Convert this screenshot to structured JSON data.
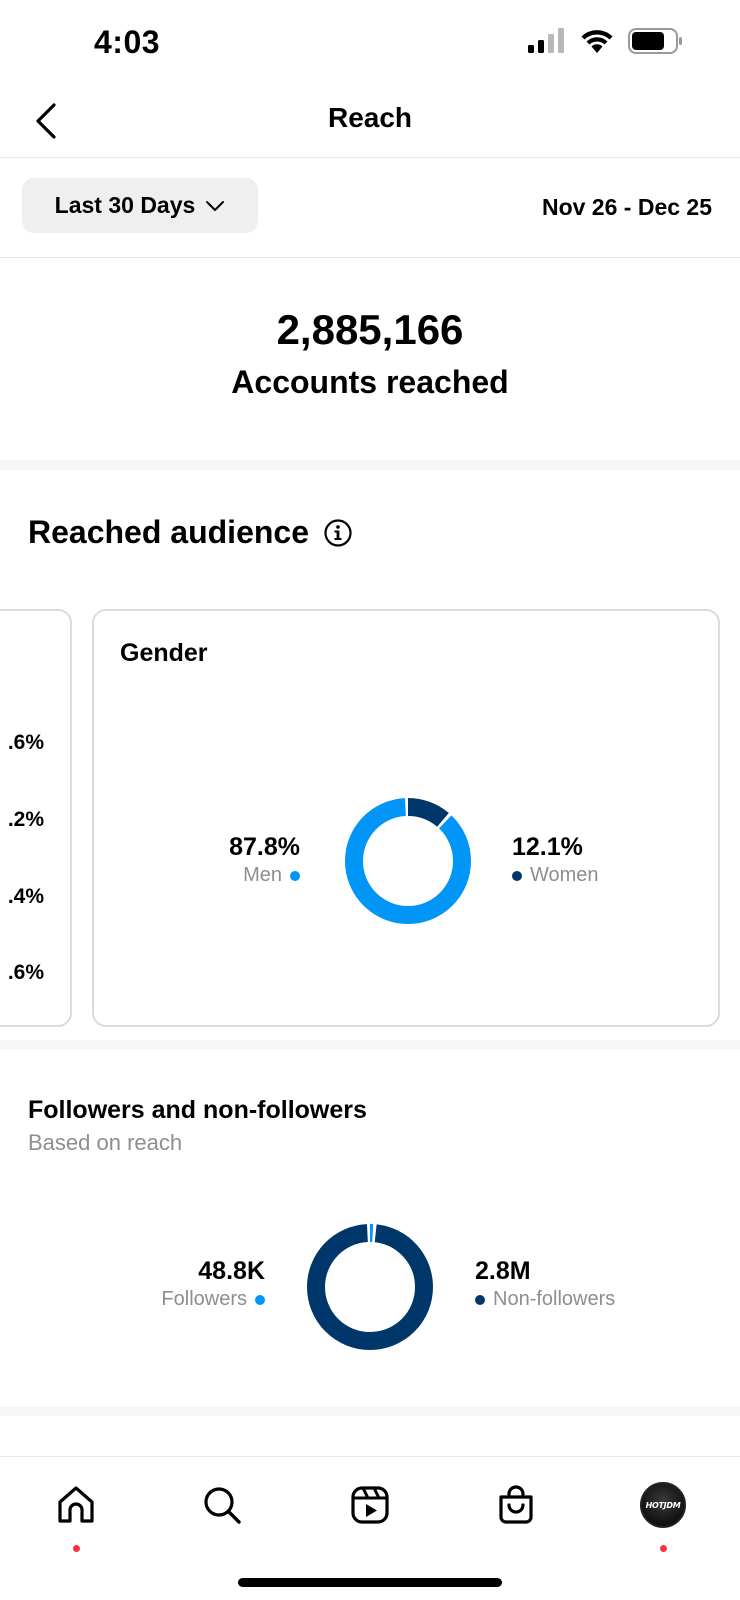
{
  "status_bar": {
    "time": "4:03"
  },
  "header": {
    "title": "Reach"
  },
  "filters": {
    "range_label": "Last 30 Days",
    "date_range": "Nov 26 - Dec 25"
  },
  "reach": {
    "count": "2,885,166",
    "label": "Accounts reached"
  },
  "audience": {
    "title": "Reached audience",
    "partial_card_values": [
      ".6%",
      ".2%",
      ".4%",
      ".6%"
    ],
    "gender": {
      "title": "Gender",
      "men": {
        "pct": "87.8%",
        "label": "Men",
        "fraction": 0.879
      },
      "women": {
        "pct": "12.1%",
        "label": "Women",
        "fraction": 0.121
      }
    }
  },
  "followers": {
    "title": "Followers and non-followers",
    "subtitle": "Based on reach",
    "followers": {
      "value": "48.8K",
      "label": "Followers",
      "fraction": 0.017
    },
    "non_followers": {
      "value": "2.8M",
      "label": "Non-followers",
      "fraction": 0.983
    }
  },
  "nav": {
    "profile_text": "HOTJDM"
  },
  "colors": {
    "light_blue": "#0095f6",
    "dark_blue": "#00376b",
    "badge": "#ff3040"
  },
  "icons": [
    "back-chevron-icon",
    "chevron-down-icon",
    "info-icon",
    "home-icon",
    "search-icon",
    "reels-icon",
    "shop-icon"
  ]
}
